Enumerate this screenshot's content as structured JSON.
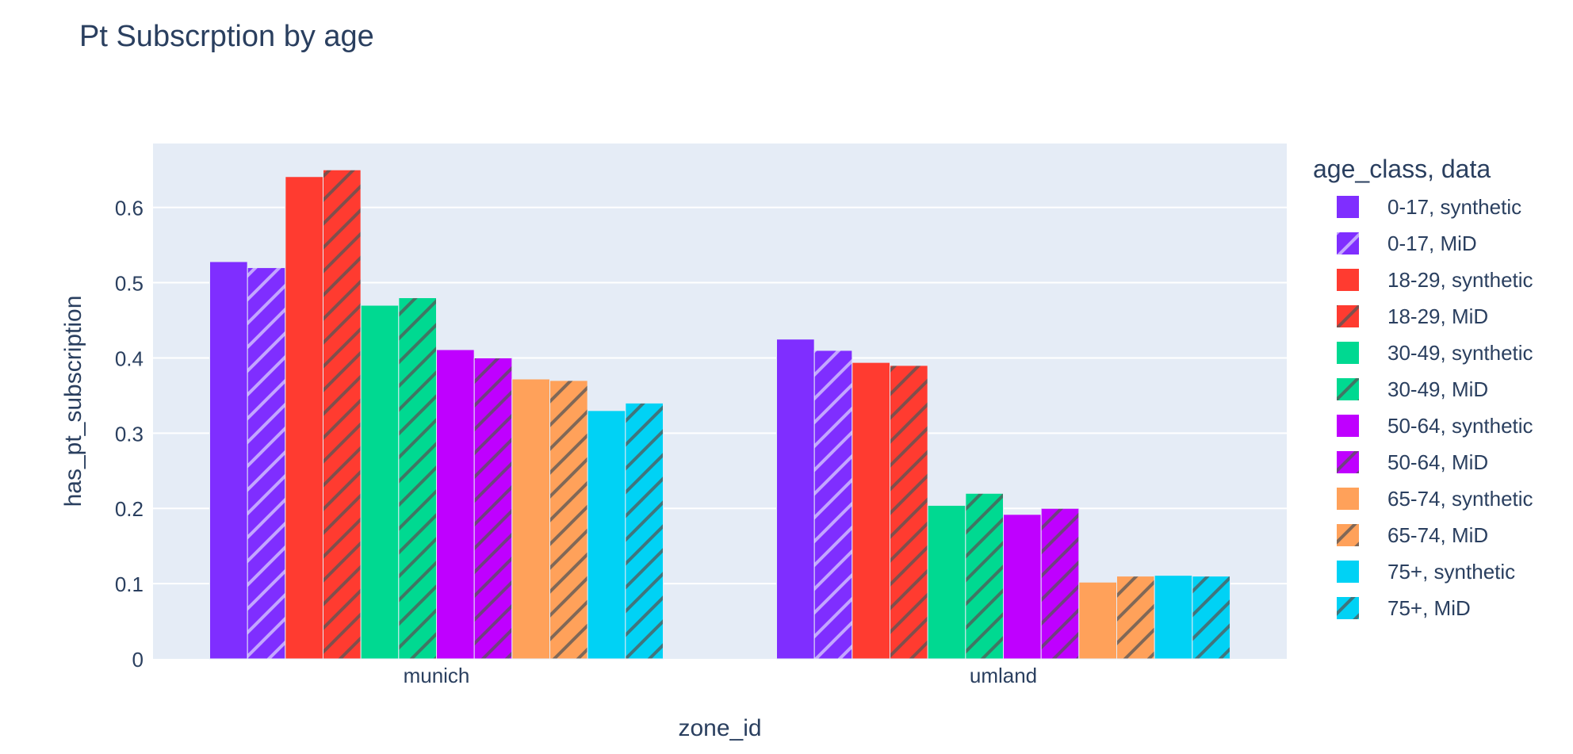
{
  "chart_data": {
    "type": "bar",
    "title": "Pt Subscrption by age",
    "xlabel": "zone_id",
    "ylabel": "has_pt_subscription",
    "categories": [
      "munich",
      "umland"
    ],
    "ylim": [
      0,
      0.685
    ],
    "yticks": [
      0,
      0.1,
      0.2,
      0.3,
      0.4,
      0.5,
      0.6
    ],
    "ytick_labels": [
      "0",
      "0.1",
      "0.2",
      "0.3",
      "0.4",
      "0.5",
      "0.6"
    ],
    "grid": true,
    "legend_title": "age_class, data",
    "legend_position": "right",
    "series": [
      {
        "name": "0-17, synthetic",
        "color": "#7F2EFF",
        "hatch": false,
        "values": [
          0.528,
          0.425
        ]
      },
      {
        "name": "0-17, MiD",
        "color": "#7F2EFF",
        "hatch": true,
        "values": [
          0.52,
          0.41
        ]
      },
      {
        "name": "18-29, synthetic",
        "color": "#FF3B30",
        "hatch": false,
        "values": [
          0.641,
          0.394
        ]
      },
      {
        "name": "18-29, MiD",
        "color": "#FF3B30",
        "hatch": true,
        "values": [
          0.65,
          0.39
        ]
      },
      {
        "name": "30-49, synthetic",
        "color": "#00D991",
        "hatch": false,
        "values": [
          0.47,
          0.204
        ]
      },
      {
        "name": "30-49, MiD",
        "color": "#00D991",
        "hatch": true,
        "values": [
          0.48,
          0.22
        ]
      },
      {
        "name": "50-64, synthetic",
        "color": "#BF00FF",
        "hatch": false,
        "values": [
          0.411,
          0.192
        ]
      },
      {
        "name": "50-64, MiD",
        "color": "#BF00FF",
        "hatch": true,
        "values": [
          0.4,
          0.2
        ]
      },
      {
        "name": "65-74, synthetic",
        "color": "#FFA15A",
        "hatch": false,
        "values": [
          0.372,
          0.102
        ]
      },
      {
        "name": "65-74, MiD",
        "color": "#FFA15A",
        "hatch": true,
        "values": [
          0.37,
          0.11
        ]
      },
      {
        "name": "75+, synthetic",
        "color": "#00D2F5",
        "hatch": false,
        "values": [
          0.33,
          0.111
        ]
      },
      {
        "name": "75+, MiD",
        "color": "#00D2F5",
        "hatch": true,
        "values": [
          0.34,
          0.11
        ]
      }
    ],
    "colors": {
      "plot_background": "#E5ECF6",
      "gridline": "#ffffff",
      "text": "#2a3f5f",
      "hatch_light": "#C3A6FF",
      "hatch_dark": "#555555"
    }
  }
}
